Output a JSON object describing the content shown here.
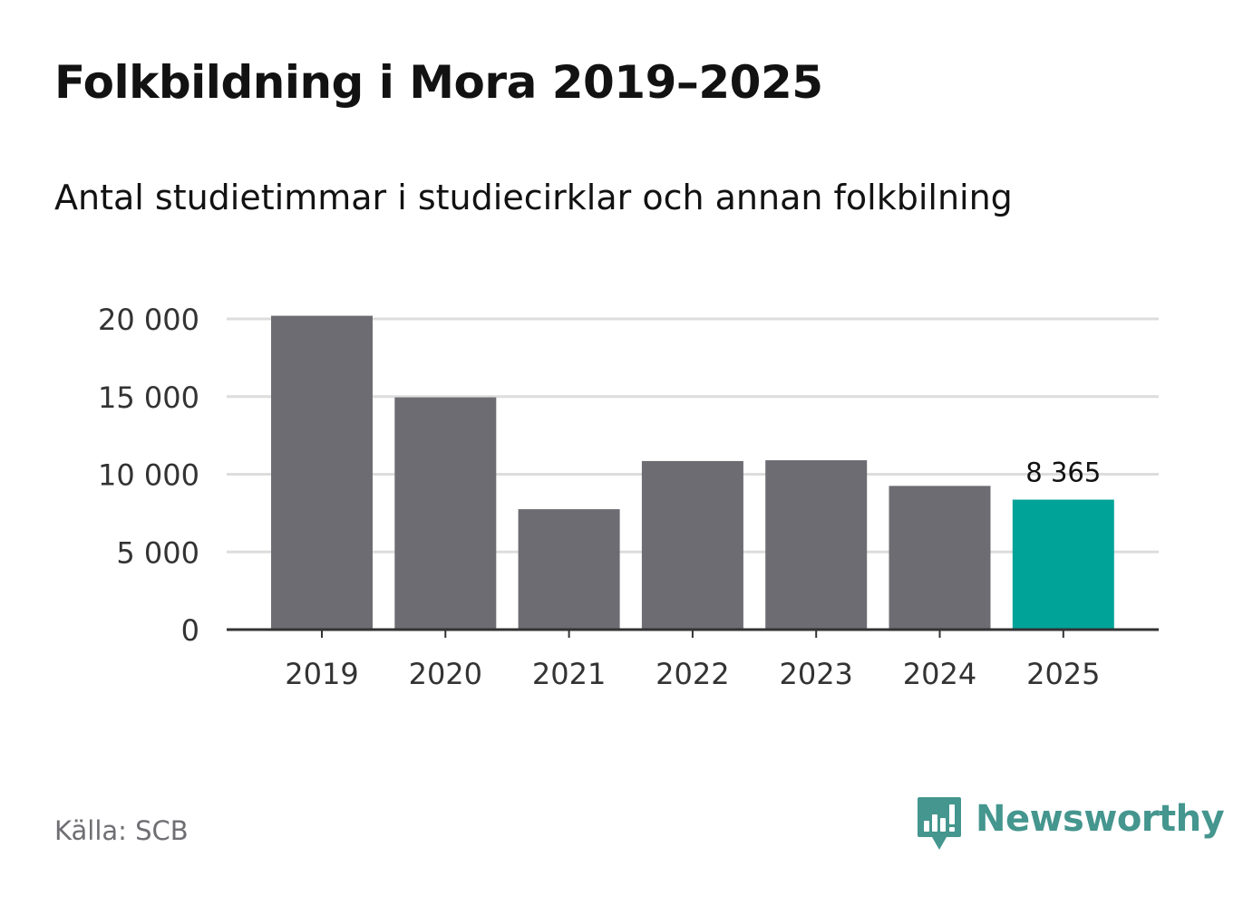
{
  "title": "Folkbildning i Mora 2019–2025",
  "subtitle": "Antal studietimmar i studiecirklar och annan folkbilning",
  "source": "Källa: SCB",
  "brand": {
    "name": "Newsworthy",
    "icon": "newsworthy-logo-icon"
  },
  "colors": {
    "bar": "#6d6c72",
    "highlight": "#00a398",
    "grid": "#dddddd",
    "axis": "#333333",
    "tick_text": "#333333",
    "brand": "#44968e"
  },
  "chart_data": {
    "type": "bar",
    "title": "Folkbildning i Mora 2019–2025",
    "subtitle": "Antal studietimmar i studiecirklar och annan folkbilning",
    "xlabel": "",
    "ylabel": "",
    "categories": [
      "2019",
      "2020",
      "2021",
      "2022",
      "2023",
      "2024",
      "2025"
    ],
    "values": [
      20200,
      14950,
      7750,
      10850,
      10900,
      9250,
      8365
    ],
    "highlight_index": 6,
    "data_labels": [
      {
        "index": 6,
        "text": "8 365"
      }
    ],
    "ylim": [
      0,
      20000
    ],
    "yticks": [
      0,
      5000,
      10000,
      15000,
      20000
    ],
    "ytick_labels": [
      "0",
      "5 000",
      "10 000",
      "15 000",
      "20 000"
    ],
    "grid": true,
    "legend": "none"
  }
}
